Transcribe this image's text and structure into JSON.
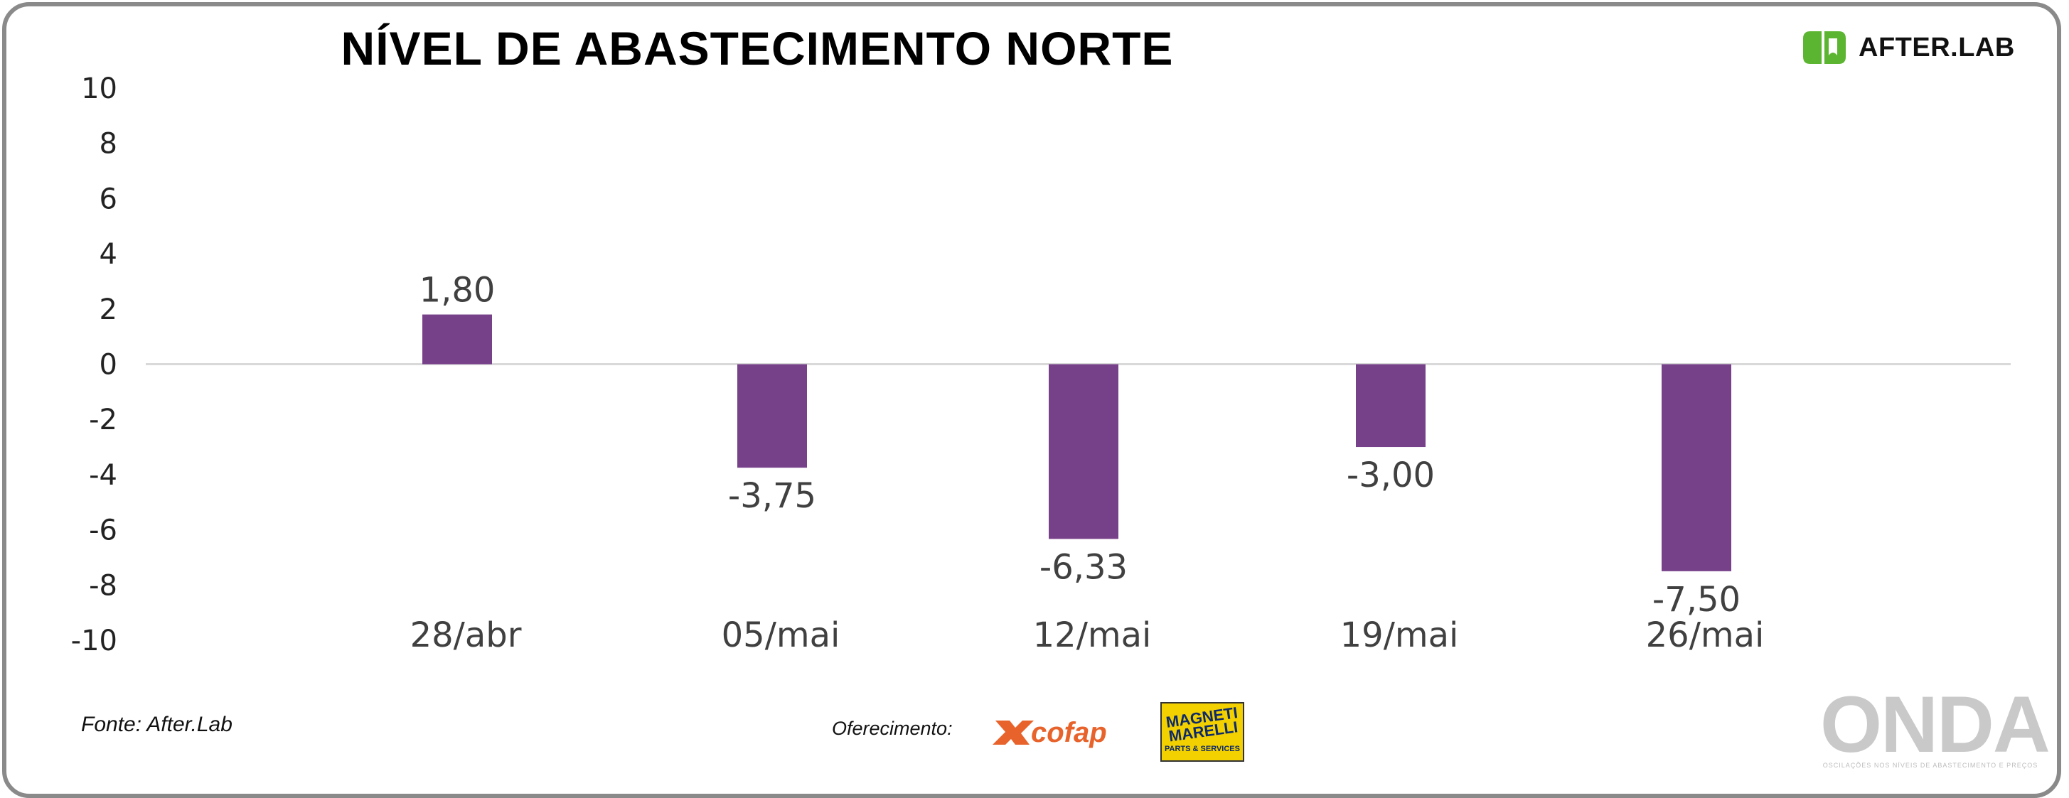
{
  "title": "NÍVEL DE ABASTECIMENTO NORTE",
  "brand": {
    "name": "AFTER.LAB",
    "mark_color": "#5cb531"
  },
  "source": "Fonte: After.Lab",
  "sponsors": {
    "label": "Oferecimento:",
    "cofap": "cofap",
    "cofap_color": "#e8632b",
    "magneti_name": "MAGNETI MARELLI",
    "magneti_sub": "PARTS & SERVICES",
    "magneti_color": "#f3d000"
  },
  "onda": {
    "word": "ONDA",
    "tagline": "OSCILAÇÕES NOS NÍVEIS DE ABASTECIMENTO E PREÇOS"
  },
  "chart_data": {
    "type": "bar",
    "title": "NÍVEL DE ABASTECIMENTO NORTE",
    "xlabel": "",
    "ylabel": "",
    "categories": [
      "28/abr",
      "05/mai",
      "12/mai",
      "19/mai",
      "26/mai"
    ],
    "values": [
      1.8,
      -3.75,
      -6.33,
      -3.0,
      -7.5
    ],
    "value_labels": [
      "1,80",
      "-3,75",
      "-6,33",
      "-3,00",
      "-7,50"
    ],
    "ylim": [
      -10,
      10
    ],
    "yticks": [
      10,
      8,
      6,
      4,
      2,
      0,
      -2,
      -4,
      -6,
      -8,
      -10
    ],
    "bar_color": "#77418a",
    "grid": false,
    "legend": "none"
  }
}
